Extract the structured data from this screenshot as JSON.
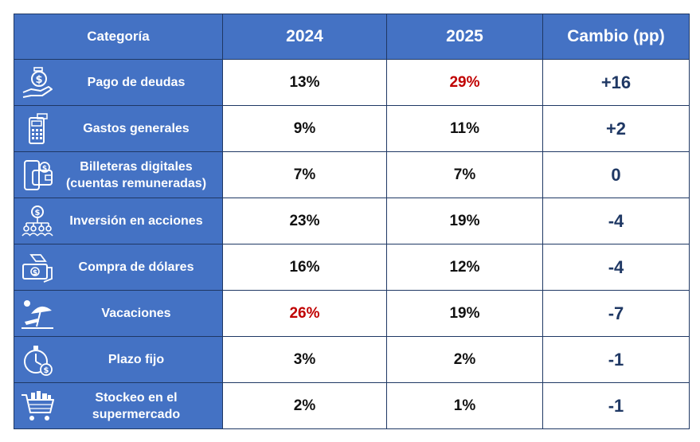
{
  "header": {
    "category": "Categoría",
    "y2024": "2024",
    "y2025": "2025",
    "change": "Cambio (pp)"
  },
  "colors": {
    "header_bg": "#4472c4",
    "border": "#1f3864",
    "highlight": "#c00000",
    "change_text": "#1f3864"
  },
  "rows": [
    {
      "icon": "hand-money-icon",
      "label": "Pago de deudas",
      "v2024": "13%",
      "v2025": "29%",
      "change": "+16",
      "highlight": "2025"
    },
    {
      "icon": "pos-terminal-icon",
      "label": "Gastos generales",
      "v2024": "9%",
      "v2025": "11%",
      "change": "+2",
      "highlight": ""
    },
    {
      "icon": "digital-wallet-icon",
      "label": "Billeteras digitales\n(cuentas remuneradas)",
      "v2024": "7%",
      "v2025": "7%",
      "change": "0",
      "highlight": ""
    },
    {
      "icon": "investment-network-icon",
      "label": "Inversión en acciones",
      "v2024": "23%",
      "v2025": "19%",
      "change": "-4",
      "highlight": ""
    },
    {
      "icon": "dollar-exchange-icon",
      "label": "Compra de dólares",
      "v2024": "16%",
      "v2025": "12%",
      "change": "-4",
      "highlight": ""
    },
    {
      "icon": "beach-umbrella-icon",
      "label": "Vacaciones",
      "v2024": "26%",
      "v2025": "19%",
      "change": "-7",
      "highlight": "2024"
    },
    {
      "icon": "stopwatch-money-icon",
      "label": "Plazo fijo",
      "v2024": "3%",
      "v2025": "2%",
      "change": "-1",
      "highlight": ""
    },
    {
      "icon": "shopping-cart-icon",
      "label": "Stockeo en el\nsupermercado",
      "v2024": "2%",
      "v2025": "1%",
      "change": "-1",
      "highlight": ""
    }
  ]
}
